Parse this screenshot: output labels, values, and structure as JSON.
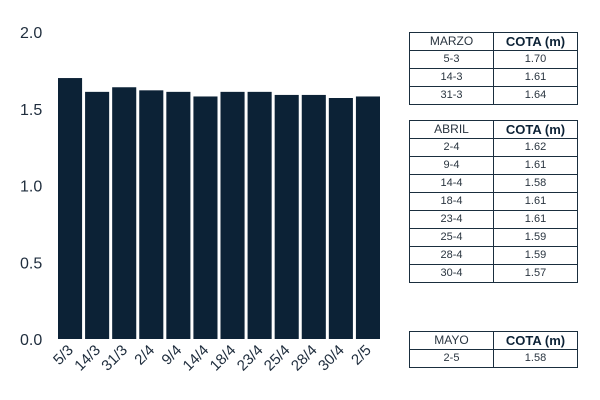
{
  "chart_data": {
    "type": "bar",
    "categories": [
      "5/3",
      "14/3",
      "31/3",
      "2/4",
      "9/4",
      "14/4",
      "18/4",
      "23/4",
      "25/4",
      "28/4",
      "30/4",
      "2/5"
    ],
    "values": [
      1.7,
      1.61,
      1.64,
      1.62,
      1.61,
      1.58,
      1.61,
      1.61,
      1.59,
      1.59,
      1.57,
      1.58
    ],
    "ylim": [
      0,
      2
    ],
    "yticks": [
      "0.0",
      "0.5",
      "1.0",
      "1.5",
      "2.0"
    ],
    "grid": false,
    "bar_color": "#0c2236"
  },
  "tables": [
    {
      "header_month": "MARZO",
      "header_value": "COTA (m)",
      "rows": [
        {
          "date": "5-3",
          "value": "1.70"
        },
        {
          "date": "14-3",
          "value": "1.61"
        },
        {
          "date": "31-3",
          "value": "1.64"
        }
      ]
    },
    {
      "header_month": "ABRIL",
      "header_value": "COTA (m)",
      "rows": [
        {
          "date": "2-4",
          "value": "1.62"
        },
        {
          "date": "9-4",
          "value": "1.61"
        },
        {
          "date": "14-4",
          "value": "1.58"
        },
        {
          "date": "18-4",
          "value": "1.61"
        },
        {
          "date": "23-4",
          "value": "1.61"
        },
        {
          "date": "25-4",
          "value": "1.59"
        },
        {
          "date": "28-4",
          "value": "1.59"
        },
        {
          "date": "30-4",
          "value": "1.57"
        }
      ]
    },
    {
      "header_month": "MAYO",
      "header_value": "COTA (m)",
      "rows": [
        {
          "date": "2-5",
          "value": "1.58"
        }
      ]
    }
  ]
}
